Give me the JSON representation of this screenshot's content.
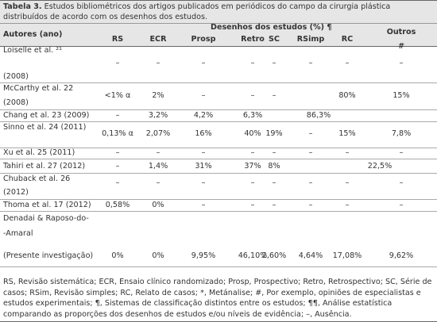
{
  "caption": {
    "label": "Tabela 3.",
    "text": "Estudos bibliométricos dos artigos publicados em periódicos do campo da cirurgia plástica distribuídos de acordo com os desenhos dos estudos."
  },
  "table": {
    "author_header": "Autores (ano)",
    "group_header": "Desenhos dos estudos (%) ¶",
    "columns": [
      "RS",
      "ECR",
      "Prosp",
      "Retro",
      "SC",
      "RSimp",
      "RC",
      "Outros #"
    ],
    "rows": [
      {
        "author": [
          "Loiselle et al. ²¹",
          "(2008)"
        ],
        "cells": [
          "–",
          "–",
          "–",
          "–",
          "–",
          "–",
          "–",
          "–"
        ]
      },
      {
        "author": [
          "McCarthy et al. 22",
          "(2008)"
        ],
        "cells": [
          "<1% α",
          "2%",
          "–",
          "–",
          "–",
          null,
          "80%",
          "15%"
        ]
      },
      {
        "author": [
          "Chang et al. 23 (2009)"
        ],
        "cells": [
          "–",
          "3,2%",
          "4,2%",
          "6,3%",
          null,
          null,
          "86,3%",
          null
        ]
      },
      {
        "author": [
          "Sinno et al. 24 (2011)"
        ],
        "cells": [
          "0,13% α",
          "2,07%",
          "16%",
          "40%",
          "19%",
          "–",
          "15%",
          "7,8%"
        ]
      },
      {
        "author": [
          "Xu et al. 25 (2011)"
        ],
        "cells": [
          "–",
          "–",
          "–",
          "–",
          "–",
          "–",
          "–",
          "–"
        ]
      },
      {
        "author": [
          "Tahiri et al. 27 (2012)"
        ],
        "cells": [
          "–",
          "1,4%",
          "31%",
          "37%",
          "8%",
          null,
          null,
          "22,5%"
        ]
      },
      {
        "author": [
          "Chuback et al. 26",
          "(2012)"
        ],
        "cells": [
          "–",
          "–",
          "–",
          "–",
          "–",
          "–",
          "–",
          "–"
        ]
      },
      {
        "author": [
          "Thoma et al. 17 (2012)"
        ],
        "cells": [
          "0,58%",
          "0%",
          "–",
          "–",
          "–",
          "–",
          "–",
          "–"
        ]
      },
      {
        "author": [
          "Denadai & Raposo-do-",
          "-Amaral",
          "(Presente investigação)"
        ],
        "cells": [
          "0%",
          "0%",
          "9,95%",
          "46,10%",
          "2,60%",
          "4,64%",
          "17,08%",
          "9,62%"
        ]
      }
    ]
  },
  "footnote": "RS, Revisão sistemática; ECR, Ensaio clínico randomizado; Prosp, Prospectivo; Retro, Retrospectivo; SC, Série de casos; RSim, Revisão simples; RC, Relato de casos; *, Metánalise; #, Por exemplo, opiniões de especialistas e estudos experimentais; ¶, Sistemas de classificação distintos entre os estudos; ¶¶, Análise estatística comparando as proporções dos desenhos de estudos e/ou níveis de evidência; –, Ausência."
}
